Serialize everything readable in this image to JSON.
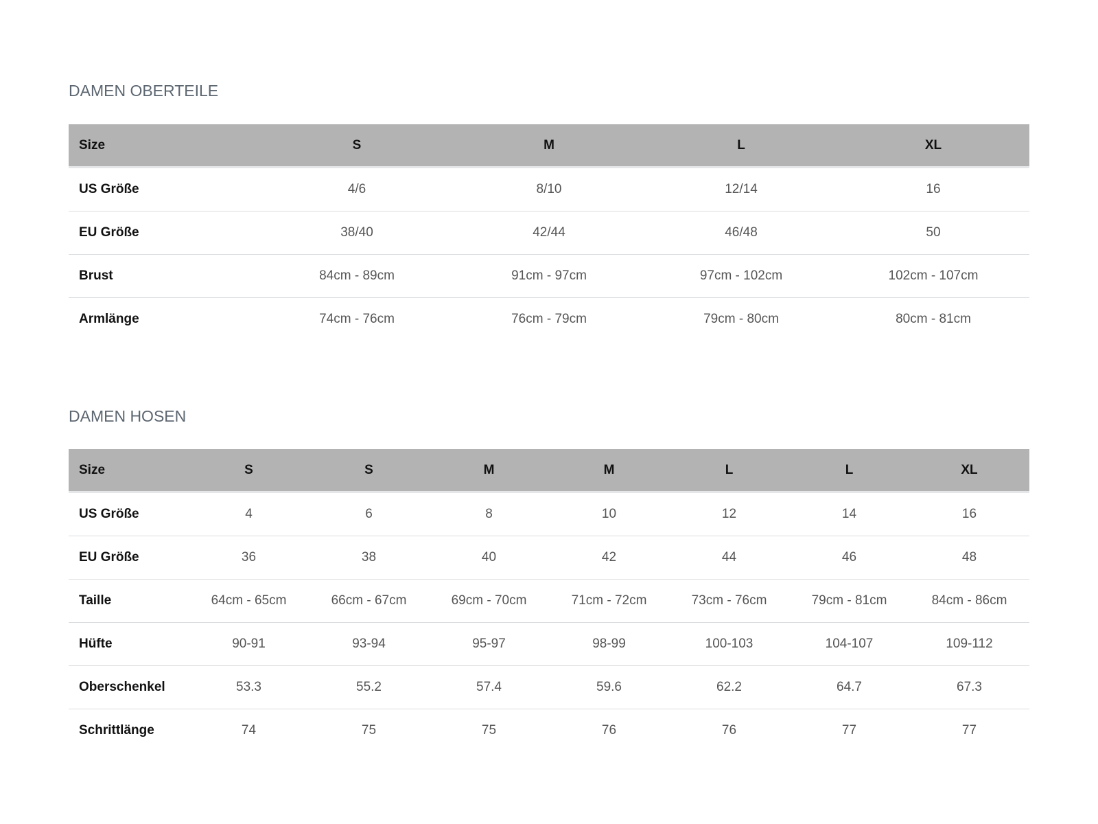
{
  "tops": {
    "title": "DAMEN OBERTEILE",
    "header": [
      "Size",
      "S",
      "M",
      "L",
      "XL"
    ],
    "rows": [
      [
        "US Größe",
        "4/6",
        "8/10",
        "12/14",
        "16"
      ],
      [
        "EU Größe",
        "38/40",
        "42/44",
        "46/48",
        "50"
      ],
      [
        "Brust",
        "84cm - 89cm",
        "91cm - 97cm",
        "97cm - 102cm",
        "102cm - 107cm"
      ],
      [
        "Armlänge",
        "74cm - 76cm",
        "76cm - 79cm",
        "79cm - 80cm",
        "80cm - 81cm"
      ]
    ]
  },
  "pants": {
    "title": "DAMEN HOSEN",
    "header": [
      "Size",
      "S",
      "S",
      "M",
      "M",
      "L",
      "L",
      "XL"
    ],
    "rows": [
      [
        "US Größe",
        "4",
        "6",
        "8",
        "10",
        "12",
        "14",
        "16"
      ],
      [
        "EU Größe",
        "36",
        "38",
        "40",
        "42",
        "44",
        "46",
        "48"
      ],
      [
        "Taille",
        "64cm - 65cm",
        "66cm - 67cm",
        "69cm - 70cm",
        "71cm - 72cm",
        "73cm - 76cm",
        "79cm - 81cm",
        "84cm - 86cm"
      ],
      [
        "Hüfte",
        "90-91",
        "93-94",
        "95-97",
        "98-99",
        "100-103",
        "104-107",
        "109-112"
      ],
      [
        "Oberschenkel",
        "53.3",
        "55.2",
        "57.4",
        "59.6",
        "62.2",
        "64.7",
        "67.3"
      ],
      [
        "Schrittlänge",
        "74",
        "75",
        "75",
        "76",
        "76",
        "77",
        "77"
      ]
    ]
  }
}
